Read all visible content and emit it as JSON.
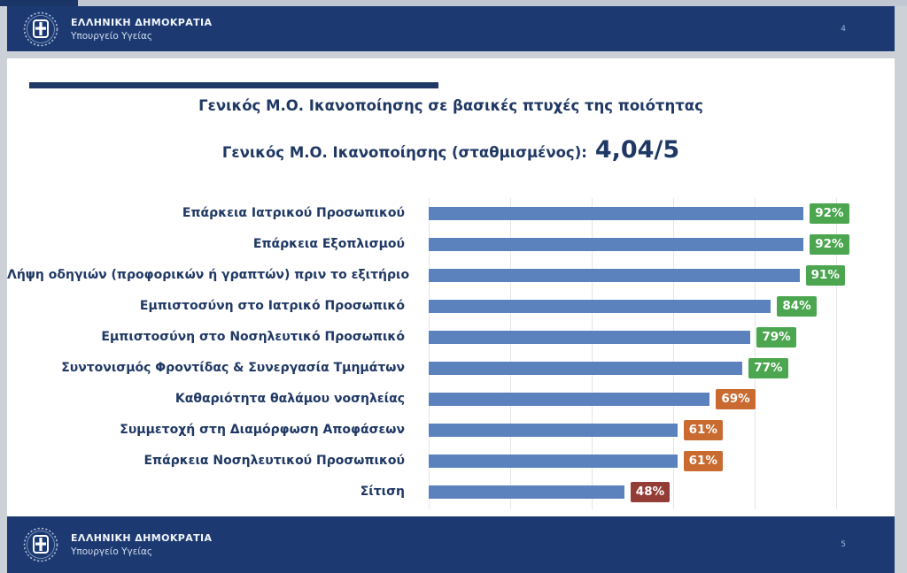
{
  "band_top": {
    "org": "ΕΛΛΗΝΙΚΗ ΔΗΜΟΚΡΑΤΙΑ",
    "dept": "Υπουργείο Υγείας",
    "page_number": "4"
  },
  "band_bottom": {
    "org": "ΕΛΛΗΝΙΚΗ ΔΗΜΟΚΡΑΤΙΑ",
    "dept": "Υπουργείο Υγείας",
    "page_number": "5"
  },
  "slide": {
    "title": "Γενικός Μ.Ο. Ικανοποίησης σε βασικές πτυχές της ποιότητας",
    "subtitle_label": "Γενικός Μ.Ο. Ικανοποίησης (σταθμισμένος):",
    "subtitle_value": "4,04/5"
  },
  "colors": {
    "band_navy": "#1c3a71",
    "title_text": "#1f3864",
    "bar_blue": "#5b82bd",
    "badge_green": "#4ba64f",
    "badge_orange": "#c96b31",
    "badge_dark_red": "#943c36",
    "gridline": "#e4e5e7"
  },
  "chart_data": {
    "type": "bar",
    "orientation": "horizontal",
    "title": "Γενικός Μ.Ο. Ικανοποίησης σε βασικές πτυχές της ποιότητας",
    "categories": [
      "Επάρκεια Ιατρικού Προσωπικού",
      "Επάρκεια Εξοπλισμού",
      "Λήψη οδηγιών (προφορικών ή γραπτών) πριν το εξιτήριο",
      "Εμπιστοσύνη στο Ιατρικό Προσωπικό",
      "Εμπιστοσύνη στο Νοσηλευτικό Προσωπικό",
      "Συντονισμός Φροντίδας & Συνεργασία Τμημάτων",
      "Καθαριότητα θαλάμου νοσηλείας",
      "Συμμετοχή στη Διαμόρφωση Αποφάσεων",
      "Επάρκεια Νοσηλευτικού Προσωπικού",
      "Σίτιση"
    ],
    "values": [
      92,
      92,
      91,
      84,
      79,
      77,
      69,
      61,
      61,
      48
    ],
    "value_labels": [
      "92%",
      "92%",
      "91%",
      "84%",
      "79%",
      "77%",
      "69%",
      "61%",
      "61%",
      "48%"
    ],
    "badge_colors": [
      "#4ba64f",
      "#4ba64f",
      "#4ba64f",
      "#4ba64f",
      "#4ba64f",
      "#4ba64f",
      "#c96b31",
      "#c96b31",
      "#c96b31",
      "#943c36"
    ],
    "bar_color": "#5b82bd",
    "xlim": [
      0,
      100
    ],
    "gridline_values": [
      0,
      20,
      40,
      60,
      80,
      100
    ],
    "axis_tick_labels_visible": false,
    "legend": null,
    "grid": "vertical-light"
  }
}
